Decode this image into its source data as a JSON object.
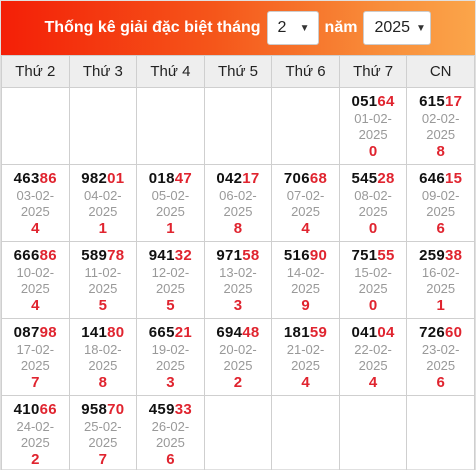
{
  "header": {
    "title": "Thống kê giải đặc biệt tháng",
    "month": "2",
    "connector": "năm",
    "year": "2025"
  },
  "weekdays": [
    "Thứ 2",
    "Thứ 3",
    "Thứ 4",
    "Thứ 5",
    "Thứ 6",
    "Thứ 7",
    "CN"
  ],
  "weeks": [
    [
      null,
      null,
      null,
      null,
      null,
      {
        "head": "051",
        "tail2": "64",
        "date": "01-02-",
        "year": "2025",
        "last": "0"
      },
      {
        "head": "615",
        "tail2": "17",
        "date": "02-02-",
        "year": "2025",
        "last": "8"
      }
    ],
    [
      {
        "head": "463",
        "tail2": "86",
        "date": "03-02-",
        "year": "2025",
        "last": "4"
      },
      {
        "head": "982",
        "tail2": "01",
        "date": "04-02-",
        "year": "2025",
        "last": "1"
      },
      {
        "head": "018",
        "tail2": "47",
        "date": "05-02-",
        "year": "2025",
        "last": "1"
      },
      {
        "head": "042",
        "tail2": "17",
        "date": "06-02-",
        "year": "2025",
        "last": "8"
      },
      {
        "head": "706",
        "tail2": "68",
        "date": "07-02-",
        "year": "2025",
        "last": "4"
      },
      {
        "head": "545",
        "tail2": "28",
        "date": "08-02-",
        "year": "2025",
        "last": "0"
      },
      {
        "head": "646",
        "tail2": "15",
        "date": "09-02-",
        "year": "2025",
        "last": "6"
      }
    ],
    [
      {
        "head": "666",
        "tail2": "86",
        "date": "10-02-",
        "year": "2025",
        "last": "4"
      },
      {
        "head": "589",
        "tail2": "78",
        "date": "11-02-",
        "year": "2025",
        "last": "5"
      },
      {
        "head": "941",
        "tail2": "32",
        "date": "12-02-",
        "year": "2025",
        "last": "5"
      },
      {
        "head": "971",
        "tail2": "58",
        "date": "13-02-",
        "year": "2025",
        "last": "3"
      },
      {
        "head": "516",
        "tail2": "90",
        "date": "14-02-",
        "year": "2025",
        "last": "9"
      },
      {
        "head": "751",
        "tail2": "55",
        "date": "15-02-",
        "year": "2025",
        "last": "0"
      },
      {
        "head": "259",
        "tail2": "38",
        "date": "16-02-",
        "year": "2025",
        "last": "1"
      }
    ],
    [
      {
        "head": "087",
        "tail2": "98",
        "date": "17-02-",
        "year": "2025",
        "last": "7"
      },
      {
        "head": "141",
        "tail2": "80",
        "date": "18-02-",
        "year": "2025",
        "last": "8"
      },
      {
        "head": "665",
        "tail2": "21",
        "date": "19-02-",
        "year": "2025",
        "last": "3"
      },
      {
        "head": "694",
        "tail2": "48",
        "date": "20-02-",
        "year": "2025",
        "last": "2"
      },
      {
        "head": "181",
        "tail2": "59",
        "date": "21-02-",
        "year": "2025",
        "last": "4"
      },
      {
        "head": "041",
        "tail2": "04",
        "date": "22-02-",
        "year": "2025",
        "last": "4"
      },
      {
        "head": "726",
        "tail2": "60",
        "date": "23-02-",
        "year": "2025",
        "last": "6"
      }
    ],
    [
      {
        "head": "410",
        "tail2": "66",
        "date": "24-02-",
        "year": "2025",
        "last": "2"
      },
      {
        "head": "958",
        "tail2": "70",
        "date": "25-02-",
        "year": "2025",
        "last": "7"
      },
      {
        "head": "459",
        "tail2": "33",
        "date": "26-02-",
        "year": "2025",
        "last": "6"
      },
      null,
      null,
      null,
      null
    ]
  ],
  "colors": {
    "accent_red": "#e0242f",
    "header_gradient_start": "#f41f07",
    "header_gradient_end": "#fba54a"
  }
}
